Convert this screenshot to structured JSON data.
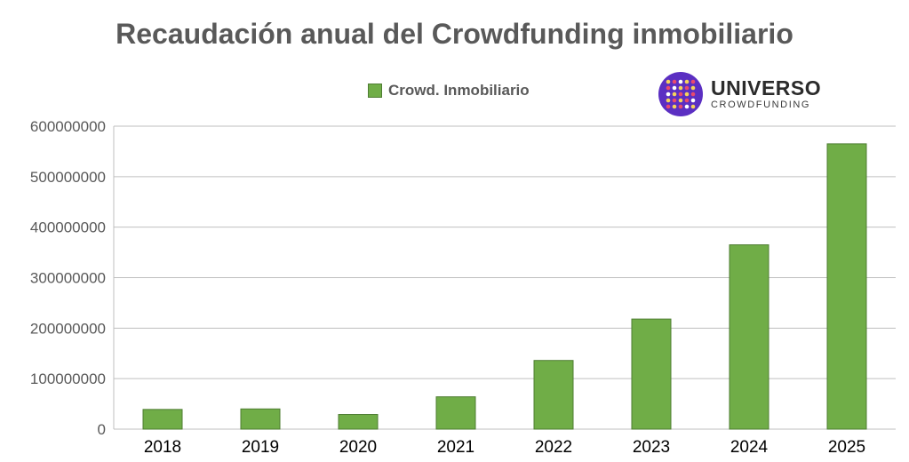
{
  "title": "Recaudación anual del Crowdfunding inmobiliario",
  "logo": {
    "main": "UNIVERSO",
    "sub": "CROWDFUNDING"
  },
  "colors": {
    "bar": "#70ad47",
    "bar_border": "#4e7d32",
    "grid": "#bfbfbf",
    "text": "#595959"
  },
  "chart_data": {
    "type": "bar",
    "title": "Recaudación anual del Crowdfunding inmobiliario",
    "categories": [
      "2018",
      "2019",
      "2020",
      "2021",
      "2022",
      "2023",
      "2024",
      "2025"
    ],
    "series": [
      {
        "name": "Crowd. Inmobiliario",
        "values": [
          39000000,
          40000000,
          29000000,
          64000000,
          136000000,
          218000000,
          365000000,
          565000000
        ]
      }
    ],
    "ylim": [
      0,
      600000000
    ],
    "yticks": [
      "0",
      "100000000",
      "200000000",
      "300000000",
      "400000000",
      "500000000",
      "600000000"
    ],
    "grid": true,
    "legend": "top-center"
  }
}
